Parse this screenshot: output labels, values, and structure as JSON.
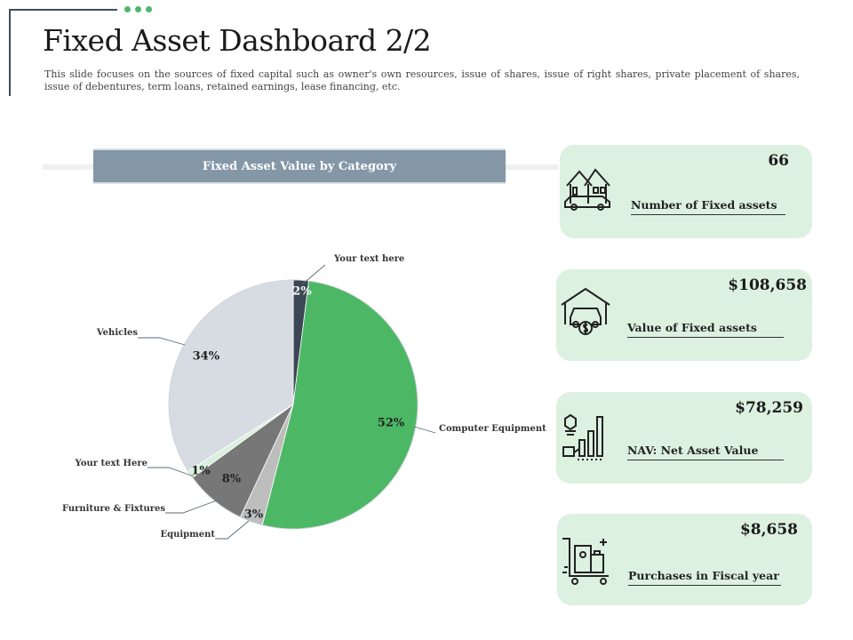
{
  "header": {
    "title": "Fixed Asset Dashboard 2/2",
    "subtitle": "This slide focuses on the sources of fixed capital such as owner's own resources, issue of shares, issue of right shares, private placement of shares, issue of debentures, term loans, retained earnings, lease financing, etc."
  },
  "colors": {
    "accent_green": "#4cb865",
    "header_blue": "#8497a7",
    "card_bg": "#dcf1e0"
  },
  "chart_data": {
    "type": "pie",
    "title": "Fixed Asset Value by Category",
    "slices": [
      {
        "label": "Your text here",
        "value": 2,
        "pct_label": "2%",
        "color": "#3b4755",
        "text_color": "#ffffff"
      },
      {
        "label": "Computer Equipment",
        "value": 52,
        "pct_label": "52%",
        "color": "#4cb865",
        "text_color": "#222222"
      },
      {
        "label": "Equipment",
        "value": 3,
        "pct_label": "3%",
        "color": "#bdbdbd",
        "text_color": "#222222"
      },
      {
        "label": "Furniture & Fixtures",
        "value": 8,
        "pct_label": "8%",
        "color": "#777777",
        "text_color": "#222222"
      },
      {
        "label": "Your text Here",
        "value": 1,
        "pct_label": "1%",
        "color": "#d8f0dc",
        "text_color": "#222222"
      },
      {
        "label": "Vehicles",
        "value": 34,
        "pct_label": "34%",
        "color": "#d6dce2",
        "text_color": "#222222"
      }
    ]
  },
  "kpis": [
    {
      "value": "66",
      "label": "Number of Fixed assets",
      "icon": "house-car-icon"
    },
    {
      "value": "$108,658",
      "label": "Value of Fixed assets",
      "icon": "garage-car-dollar-icon"
    },
    {
      "value": "$78,259",
      "label": "NAV: Net Asset Value",
      "icon": "growth-chart-icon"
    },
    {
      "value": "$8,658",
      "label": "Purchases in Fiscal year",
      "icon": "shopping-cart-icon"
    }
  ]
}
